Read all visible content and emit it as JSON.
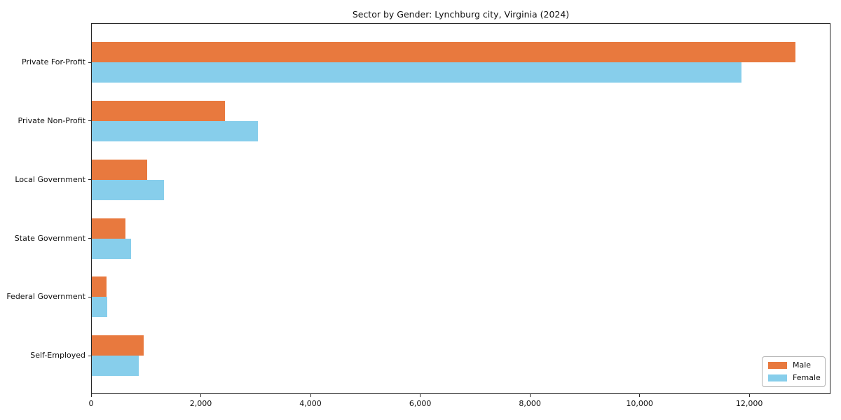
{
  "figure": {
    "title": "Sector by Gender: Lynchburg city, Virginia (2024)"
  },
  "colors": {
    "background": "#ffffff",
    "axis": "#262626",
    "text": "#111111",
    "male": "#e8793e",
    "female": "#87ceeb",
    "legend_border": "#b3b3b3"
  },
  "chart_data": {
    "type": "bar",
    "orientation": "horizontal",
    "title": "Sector by Gender: Lynchburg city, Virginia (2024)",
    "categories": [
      "Private For-Profit",
      "Private Non-Profit",
      "Local Government",
      "State Government",
      "Federal Government",
      "Self-Employed"
    ],
    "series": [
      {
        "name": "Male",
        "color": "#e8793e",
        "values": [
          12835,
          2440,
          1020,
          630,
          285,
          960
        ]
      },
      {
        "name": "Female",
        "color": "#87ceeb",
        "values": [
          11860,
          3040,
          1325,
          725,
          300,
          870
        ]
      }
    ],
    "xlabel": "",
    "ylabel": "",
    "xlim": [
      0,
      13480
    ],
    "xticks": [
      0,
      2000,
      4000,
      6000,
      8000,
      10000,
      12000
    ],
    "xtick_labels": [
      "0",
      "2,000",
      "4,000",
      "6,000",
      "8,000",
      "10,000",
      "12,000"
    ],
    "grid": false,
    "legend": {
      "position": "lower-right",
      "entries": [
        {
          "label": "Male",
          "color": "#e8793e"
        },
        {
          "label": "Female",
          "color": "#87ceeb"
        }
      ]
    }
  }
}
